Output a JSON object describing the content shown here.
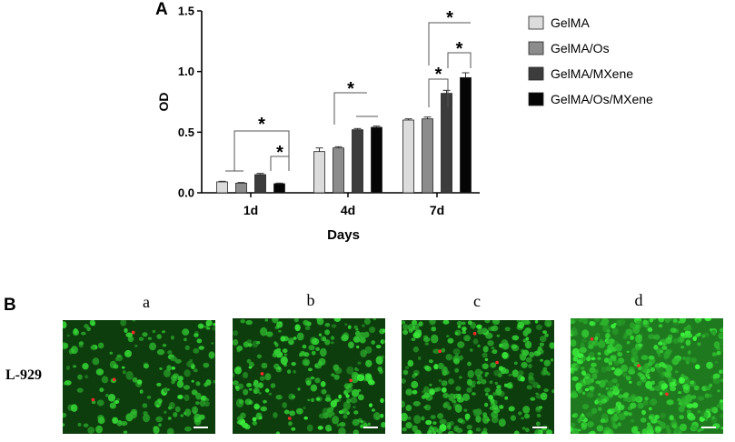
{
  "panel_a": {
    "letter": "A"
  },
  "panel_b": {
    "letter": "B",
    "row_label": "L-929",
    "images": [
      {
        "label": "a",
        "caption": "GelMA"
      },
      {
        "label": "b",
        "caption": "GelMA/Os"
      },
      {
        "label": "c",
        "caption": "GelMA/MXene"
      },
      {
        "label": "d",
        "caption": "GelMA/Os/MXene"
      }
    ]
  },
  "colors": {
    "GelMA": "#dcdcdc",
    "GelMA/Os": "#8c8c8c",
    "GelMA/MXene": "#3c3c3c",
    "GelMA/Os/MXene": "#050505",
    "live_cells": "#3fd23f",
    "dead_cells": "#ff2a2a"
  },
  "chart_data": {
    "type": "bar",
    "xlabel": "Days",
    "ylabel": "OD",
    "ylim": [
      0,
      1.5
    ],
    "yticks": [
      "0.0",
      "0.5",
      "1.0",
      "1.5"
    ],
    "categories": [
      "1d",
      "4d",
      "7d"
    ],
    "legend_position": "right",
    "series": [
      {
        "name": "GelMA",
        "values": [
          0.09,
          0.34,
          0.6
        ],
        "errors": [
          0.005,
          0.03,
          0.01
        ]
      },
      {
        "name": "GelMA/Os",
        "values": [
          0.08,
          0.37,
          0.61
        ],
        "errors": [
          0.005,
          0.01,
          0.015
        ]
      },
      {
        "name": "GelMA/MXene",
        "values": [
          0.15,
          0.52,
          0.82
        ],
        "errors": [
          0.01,
          0.01,
          0.025
        ]
      },
      {
        "name": "GelMA/Os/MXene",
        "values": [
          0.075,
          0.54,
          0.95
        ],
        "errors": [
          0.005,
          0.01,
          0.04
        ]
      }
    ],
    "significance": [
      {
        "category": "1d",
        "label": "*"
      },
      {
        "category": "1d",
        "label": "*"
      },
      {
        "category": "4d",
        "label": "*"
      },
      {
        "category": "7d",
        "label": "*"
      },
      {
        "category": "7d",
        "label": "*"
      },
      {
        "category": "7d",
        "label": "*"
      }
    ]
  }
}
